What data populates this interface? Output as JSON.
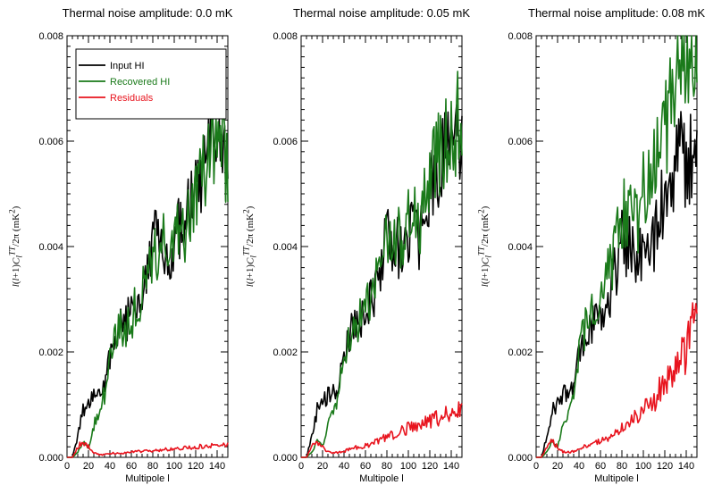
{
  "figure": {
    "panel_titles": [
      "Thermal noise amplitude: 0.0 mK",
      "Thermal noise amplitude: 0.05 mK",
      "Thermal noise amplitude: 0.08 mK"
    ],
    "xlabel": "Multipole l",
    "ylabel": "l(l+1)C_l^TT/2π (mK^2)",
    "ylabel_html": "<i>l</i>(<i>l</i>+1)<i>C<sub>l</sub><sup>TT</sup></i>/2π (mK<sup>2</sup>)",
    "legend": [
      "Input HI",
      "Recovered HI",
      "Residuals"
    ],
    "colors": {
      "input": "#000000",
      "recovered": "#1a7a1a",
      "residuals": "#e8141e"
    }
  },
  "chart_data": [
    {
      "type": "line",
      "title": "Thermal noise amplitude: 0.0 mK",
      "xlabel": "Multipole l",
      "ylabel": "l(l+1)C_l^TT/2π (mK^2)",
      "xlim": [
        0,
        150
      ],
      "ylim": [
        0,
        0.008
      ],
      "xticks": [
        0,
        20,
        40,
        60,
        80,
        100,
        120,
        140
      ],
      "yticks": [
        0.0,
        0.002,
        0.004,
        0.006,
        0.008
      ],
      "ytick_labels": [
        "0.000",
        "0.002",
        "0.004",
        "0.006",
        "0.008"
      ],
      "legend_position": "top-left",
      "series": [
        {
          "name": "Input HI",
          "color": "#000000",
          "x": [
            0,
            5,
            10,
            15,
            20,
            25,
            30,
            35,
            40,
            45,
            50,
            55,
            60,
            65,
            70,
            75,
            80,
            85,
            90,
            95,
            100,
            105,
            110,
            115,
            120,
            125,
            130,
            135,
            140,
            145,
            150
          ],
          "y": [
            0.0,
            0.0,
            0.0004,
            0.0009,
            0.001,
            0.0012,
            0.0012,
            0.0013,
            0.002,
            0.0023,
            0.0025,
            0.0026,
            0.0027,
            0.003,
            0.0032,
            0.0036,
            0.0044,
            0.0039,
            0.004,
            0.0037,
            0.0041,
            0.0043,
            0.0042,
            0.0048,
            0.005,
            0.0052,
            0.0055,
            0.0058,
            0.0055,
            0.0058,
            0.0056
          ]
        },
        {
          "name": "Recovered HI",
          "color": "#1a7a1a",
          "x": [
            0,
            5,
            10,
            15,
            20,
            25,
            30,
            35,
            40,
            45,
            50,
            55,
            60,
            65,
            70,
            75,
            80,
            85,
            90,
            95,
            100,
            105,
            110,
            115,
            120,
            125,
            130,
            135,
            140,
            145,
            150
          ],
          "y": [
            0.0,
            0.0,
            0.0001,
            0.0003,
            0.0002,
            0.0006,
            0.0009,
            0.0012,
            0.0019,
            0.0023,
            0.0025,
            0.0025,
            0.0026,
            0.0029,
            0.0031,
            0.0035,
            0.004,
            0.0039,
            0.004,
            0.0037,
            0.0041,
            0.0042,
            0.0041,
            0.0047,
            0.005,
            0.0052,
            0.0055,
            0.0059,
            0.0056,
            0.0058,
            0.0057
          ]
        },
        {
          "name": "Residuals",
          "color": "#e8141e",
          "x": [
            0,
            5,
            10,
            15,
            20,
            25,
            30,
            35,
            40,
            50,
            60,
            70,
            80,
            90,
            100,
            110,
            120,
            130,
            140,
            150
          ],
          "y": [
            0.0,
            0.0,
            0.0002,
            0.0003,
            0.0002,
            0.0001,
            5e-05,
            5e-05,
            8e-05,
            8e-05,
            0.0001,
            0.00012,
            0.00012,
            0.00015,
            0.00015,
            0.00018,
            0.0002,
            0.00022,
            0.00025,
            0.00023
          ]
        }
      ]
    },
    {
      "type": "line",
      "title": "Thermal noise amplitude: 0.05 mK",
      "xlabel": "Multipole l",
      "ylabel": "l(l+1)C_l^TT/2π (mK^2)",
      "xlim": [
        0,
        150
      ],
      "ylim": [
        0,
        0.008
      ],
      "xticks": [
        0,
        20,
        40,
        60,
        80,
        100,
        120,
        140
      ],
      "yticks": [
        0.0,
        0.002,
        0.004,
        0.006,
        0.008
      ],
      "ytick_labels": [
        "0.000",
        "0.002",
        "0.004",
        "0.006",
        "0.008"
      ],
      "series": [
        {
          "name": "Input HI",
          "color": "#000000",
          "x": [
            0,
            5,
            10,
            15,
            20,
            25,
            30,
            35,
            40,
            45,
            50,
            55,
            60,
            65,
            70,
            75,
            80,
            85,
            90,
            95,
            100,
            105,
            110,
            115,
            120,
            125,
            130,
            135,
            140,
            145,
            150
          ],
          "y": [
            0.0,
            0.0,
            0.0004,
            0.0009,
            0.001,
            0.0012,
            0.0012,
            0.0013,
            0.002,
            0.0023,
            0.0025,
            0.0026,
            0.0027,
            0.003,
            0.0032,
            0.0036,
            0.0044,
            0.0039,
            0.004,
            0.0037,
            0.0041,
            0.0043,
            0.0042,
            0.0048,
            0.005,
            0.0052,
            0.0055,
            0.0058,
            0.0055,
            0.0058,
            0.0056
          ]
        },
        {
          "name": "Recovered HI",
          "color": "#1a7a1a",
          "x": [
            0,
            5,
            10,
            15,
            20,
            25,
            30,
            35,
            40,
            45,
            50,
            55,
            60,
            65,
            70,
            75,
            80,
            85,
            90,
            95,
            100,
            105,
            110,
            115,
            120,
            125,
            130,
            135,
            140,
            145,
            150
          ],
          "y": [
            0.0,
            0.0,
            0.0001,
            0.0003,
            0.0002,
            0.0006,
            0.0009,
            0.0012,
            0.0019,
            0.0023,
            0.0025,
            0.0026,
            0.0027,
            0.0031,
            0.0033,
            0.0037,
            0.0042,
            0.0041,
            0.0042,
            0.004,
            0.0044,
            0.0045,
            0.0045,
            0.005,
            0.0053,
            0.0055,
            0.0058,
            0.0062,
            0.006,
            0.0063,
            0.0065
          ]
        },
        {
          "name": "Residuals",
          "color": "#e8141e",
          "x": [
            0,
            5,
            10,
            15,
            20,
            25,
            30,
            35,
            40,
            50,
            60,
            70,
            80,
            90,
            100,
            110,
            120,
            130,
            140,
            150
          ],
          "y": [
            0.0,
            0.0,
            0.0002,
            0.0003,
            0.0002,
            0.0001,
            8e-05,
            0.0001,
            0.00012,
            0.00018,
            0.00022,
            0.0003,
            0.0004,
            0.00045,
            0.00055,
            0.00062,
            0.0007,
            0.00078,
            0.00088,
            0.00095
          ]
        }
      ]
    },
    {
      "type": "line",
      "title": "Thermal noise amplitude: 0.08 mK",
      "xlabel": "Multipole l",
      "ylabel": "l(l+1)C_l^TT/2π (mK^2)",
      "xlim": [
        0,
        150
      ],
      "ylim": [
        0,
        0.008
      ],
      "xticks": [
        0,
        20,
        40,
        60,
        80,
        100,
        120,
        140
      ],
      "yticks": [
        0.0,
        0.002,
        0.004,
        0.006,
        0.008
      ],
      "ytick_labels": [
        "0.000",
        "0.002",
        "0.004",
        "0.006",
        "0.008"
      ],
      "series": [
        {
          "name": "Input HI",
          "color": "#000000",
          "x": [
            0,
            5,
            10,
            15,
            20,
            25,
            30,
            35,
            40,
            45,
            50,
            55,
            60,
            65,
            70,
            75,
            80,
            85,
            90,
            95,
            100,
            105,
            110,
            115,
            120,
            125,
            130,
            135,
            140,
            145,
            150
          ],
          "y": [
            0.0,
            0.0,
            0.0004,
            0.0009,
            0.001,
            0.0012,
            0.0012,
            0.0013,
            0.002,
            0.0023,
            0.0025,
            0.0026,
            0.0027,
            0.003,
            0.0032,
            0.0036,
            0.0044,
            0.0039,
            0.004,
            0.0037,
            0.0041,
            0.0043,
            0.0042,
            0.0048,
            0.005,
            0.0052,
            0.0055,
            0.0058,
            0.0055,
            0.0058,
            0.0056
          ]
        },
        {
          "name": "Recovered HI",
          "color": "#1a7a1a",
          "x": [
            0,
            5,
            10,
            15,
            20,
            25,
            30,
            35,
            40,
            45,
            50,
            55,
            60,
            65,
            70,
            75,
            80,
            85,
            90,
            95,
            100,
            105,
            110,
            115,
            120,
            125,
            130,
            135,
            140,
            145,
            150
          ],
          "y": [
            0.0,
            0.0,
            0.0001,
            0.0003,
            0.0002,
            0.0006,
            0.0009,
            0.0013,
            0.002,
            0.0024,
            0.0027,
            0.0028,
            0.003,
            0.0034,
            0.0037,
            0.0041,
            0.0047,
            0.0046,
            0.0048,
            0.0046,
            0.0051,
            0.0053,
            0.0054,
            0.0059,
            0.0063,
            0.0066,
            0.007,
            0.0075,
            0.0073,
            0.0078,
            0.008
          ]
        },
        {
          "name": "Residuals",
          "color": "#e8141e",
          "x": [
            0,
            5,
            10,
            15,
            20,
            25,
            30,
            35,
            40,
            50,
            60,
            70,
            80,
            90,
            100,
            110,
            120,
            130,
            140,
            145,
            150
          ],
          "y": [
            0.0,
            0.0,
            0.0002,
            0.0003,
            0.0002,
            0.0001,
            0.0001,
            0.00012,
            0.00016,
            0.00025,
            0.0003,
            0.0004,
            0.00055,
            0.0007,
            0.0009,
            0.0011,
            0.0014,
            0.0017,
            0.002,
            0.0024,
            0.0025
          ]
        }
      ]
    }
  ]
}
